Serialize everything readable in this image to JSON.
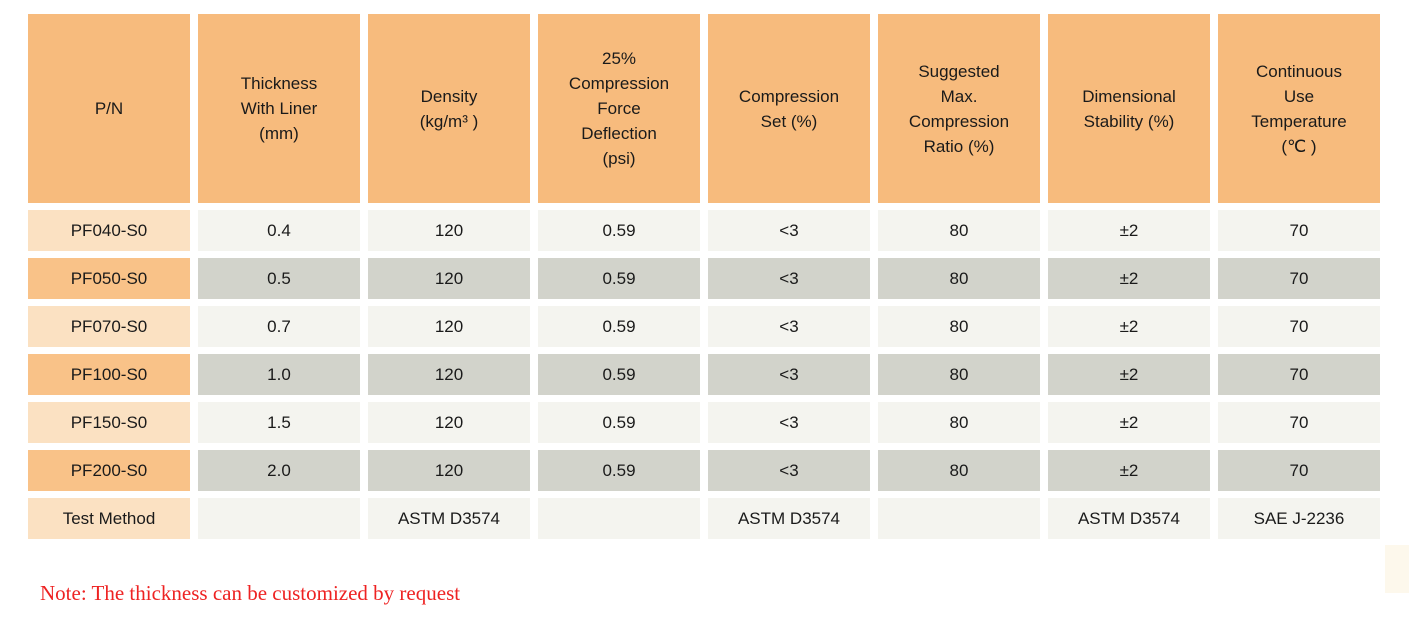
{
  "colors": {
    "header_orange": "#f7bb7d",
    "pn_light": "#fbe1c2",
    "pn_medium": "#f9c288",
    "row_light": "#f4f4ef",
    "row_dark": "#d2d3cb",
    "note_red": "#ee2222",
    "text_dark": "#1a1a1a",
    "edge_cream": "#fdf8ec"
  },
  "table": {
    "headers": [
      "P/N",
      "Thickness\nWith Liner\n(mm)",
      "Density\n(kg/m³ )",
      "25%\nCompression\nForce\nDeflection\n(psi)",
      "Compression\nSet (%)",
      "Suggested\nMax.\nCompression\nRatio (%)",
      "Dimensional\nStability (%)",
      "Continuous\nUse\nTemperature\n(℃ )"
    ],
    "rows": [
      [
        "PF040-S0",
        "0.4",
        "120",
        "0.59",
        "<3",
        "80",
        "±2",
        "70"
      ],
      [
        "PF050-S0",
        "0.5",
        "120",
        "0.59",
        "<3",
        "80",
        "±2",
        "70"
      ],
      [
        "PF070-S0",
        "0.7",
        "120",
        "0.59",
        "<3",
        "80",
        "±2",
        "70"
      ],
      [
        "PF100-S0",
        "1.0",
        "120",
        "0.59",
        "<3",
        "80",
        "±2",
        "70"
      ],
      [
        "PF150-S0",
        "1.5",
        "120",
        "0.59",
        "<3",
        "80",
        "±2",
        "70"
      ],
      [
        "PF200-S0",
        "2.0",
        "120",
        "0.59",
        "<3",
        "80",
        "±2",
        "70"
      ],
      [
        "Test Method",
        "",
        "ASTM D3574",
        "",
        "ASTM D3574",
        "",
        "ASTM D3574",
        "SAE J-2236"
      ]
    ]
  },
  "note": "Note: The thickness can be customized by request"
}
